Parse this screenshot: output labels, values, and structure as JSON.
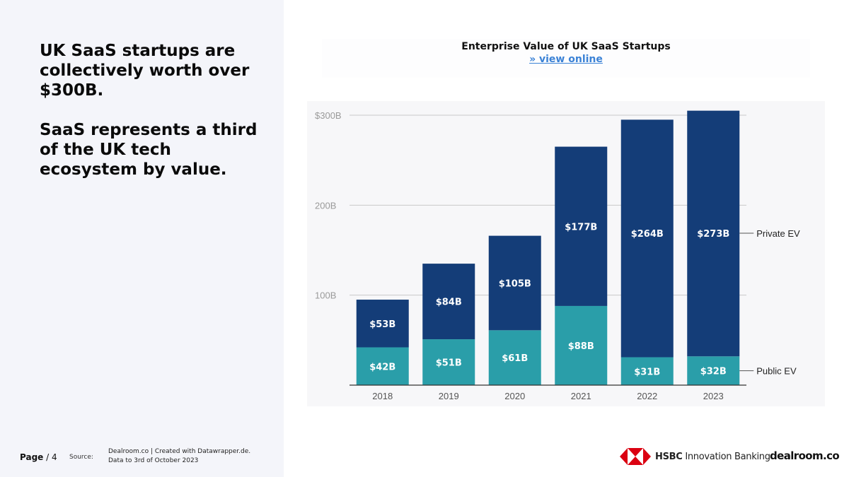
{
  "headline": {
    "text": "UK SaaS startups are collectively worth over $300B.\n\nSaaS represents a third of the UK tech ecosystem by value."
  },
  "chart_title": {
    "title": "Enterprise Value of UK SaaS Startups",
    "link": "» view online"
  },
  "chart_data": {
    "type": "bar",
    "stacked": true,
    "categories": [
      "2018",
      "2019",
      "2020",
      "2021",
      "2022",
      "2023"
    ],
    "series": [
      {
        "name": "Public EV",
        "values": [
          42,
          51,
          61,
          88,
          31,
          32
        ],
        "labels": [
          "$42B",
          "$51B",
          "$61B",
          "$88B",
          "$31B",
          "$32B"
        ],
        "color": "#2a9ea9"
      },
      {
        "name": "Private EV",
        "values": [
          53,
          84,
          105,
          177,
          264,
          273
        ],
        "labels": [
          "$53B",
          "$84B",
          "$105B",
          "$177B",
          "$264B",
          "$273B"
        ],
        "color": "#143d78"
      }
    ],
    "ylim": [
      0,
      300
    ],
    "yticks": [
      100,
      200,
      300
    ],
    "ytick_labels": [
      "100B",
      "200B",
      "$300B"
    ],
    "legend_position": "right",
    "grid": true,
    "title": "Enterprise Value of UK SaaS Startups"
  },
  "footer": {
    "page_label": "Page",
    "page_number": "/ 4",
    "source_label": "Source:",
    "source_line1": "Dealroom.co | Created with Datawrapper.de.",
    "source_line2": "Data to 3rd of October 2023"
  },
  "logos": {
    "hsbc_bold": "HSBC",
    "hsbc_rest": " Innovation Banking",
    "dealroom": "dealroom.co",
    "hsbc_red": "#db0011"
  }
}
